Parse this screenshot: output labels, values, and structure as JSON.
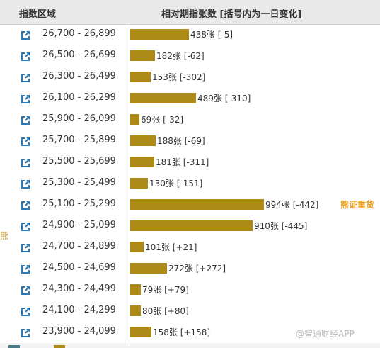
{
  "header": {
    "col_index": "指数区域",
    "col_bars": "相对期指张数 [括号内为一日变化]"
  },
  "annotations": {
    "bear_label": "熊证重货",
    "left_edge": "熊",
    "watermark": "@智通财经APP"
  },
  "colors": {
    "bar": "#ac8a17",
    "accent": "#e8a020",
    "icon": "#2a79b7"
  },
  "rows": [
    {
      "range": "26,700 - 26,899",
      "count": 438,
      "change": "-5",
      "label": "438张 [-5]"
    },
    {
      "range": "26,500 - 26,699",
      "count": 182,
      "change": "-62",
      "label": "182张 [-62]"
    },
    {
      "range": "26,300 - 26,499",
      "count": 153,
      "change": "-302",
      "label": "153张 [-302]"
    },
    {
      "range": "26,100 - 26,299",
      "count": 489,
      "change": "-310",
      "label": "489张 [-310]"
    },
    {
      "range": "25,900 - 26,099",
      "count": 69,
      "change": "-32",
      "label": "69张 [-32]"
    },
    {
      "range": "25,700 - 25,899",
      "count": 188,
      "change": "-69",
      "label": "188张 [-69]"
    },
    {
      "range": "25,500 - 25,699",
      "count": 181,
      "change": "-311",
      "label": "181张 [-311]"
    },
    {
      "range": "25,300 - 25,499",
      "count": 130,
      "change": "-151",
      "label": "130张 [-151]"
    },
    {
      "range": "25,100 - 25,299",
      "count": 994,
      "change": "-442",
      "label": "994张 [-442]"
    },
    {
      "range": "24,900 - 25,099",
      "count": 910,
      "change": "-445",
      "label": "910张 [-445]"
    },
    {
      "range": "24,700 - 24,899",
      "count": 101,
      "change": "+21",
      "label": "101张 [+21]"
    },
    {
      "range": "24,500 - 24,699",
      "count": 272,
      "change": "+272",
      "label": "272张 [+272]"
    },
    {
      "range": "24,300 - 24,499",
      "count": 79,
      "change": "+79",
      "label": "79张 [+79]"
    },
    {
      "range": "24,100 - 24,299",
      "count": 80,
      "change": "+80",
      "label": "80张 [+80]"
    },
    {
      "range": "23,900 - 24,099",
      "count": 158,
      "change": "+158",
      "label": "158张 [+158]"
    }
  ],
  "chart_data": {
    "type": "bar",
    "orientation": "horizontal",
    "categories": [
      "26,700 - 26,899",
      "26,500 - 26,699",
      "26,300 - 26,499",
      "26,100 - 26,299",
      "25,900 - 26,099",
      "25,700 - 25,899",
      "25,500 - 25,699",
      "25,300 - 25,499",
      "25,100 - 25,299",
      "24,900 - 25,099",
      "24,700 - 24,899",
      "24,500 - 24,699",
      "24,300 - 24,499",
      "24,100 - 24,299",
      "23,900 - 24,099"
    ],
    "values": [
      438,
      182,
      153,
      489,
      69,
      188,
      181,
      130,
      994,
      910,
      101,
      272,
      79,
      80,
      158
    ],
    "changes": [
      -5,
      -62,
      -302,
      -310,
      -32,
      -69,
      -311,
      -151,
      -442,
      -445,
      21,
      272,
      79,
      80,
      158
    ]
  }
}
